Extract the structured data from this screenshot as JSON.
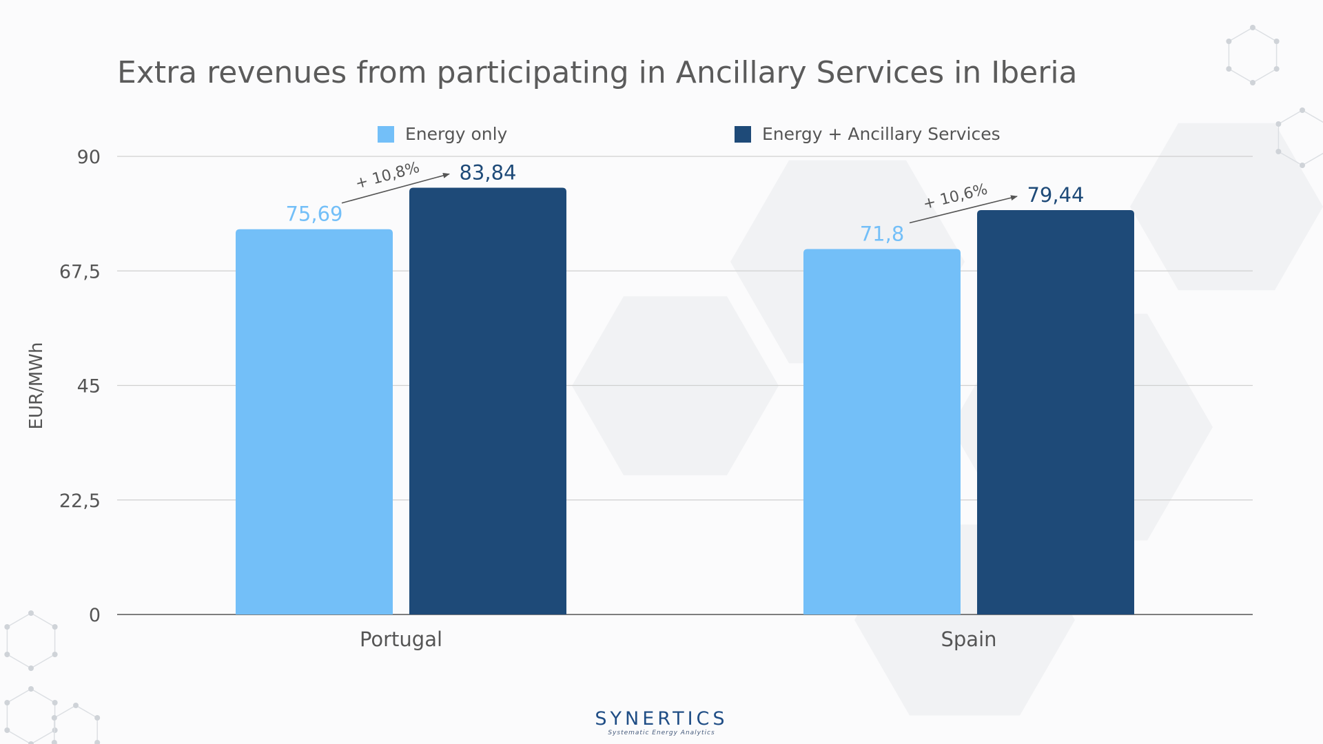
{
  "chart_data": {
    "type": "bar",
    "title": "Extra revenues from participating in Ancillary Services in Iberia",
    "ylabel": "EUR/MWh",
    "xlabel": "",
    "ylim": [
      0,
      90
    ],
    "yticks": [
      0,
      22.5,
      45,
      67.5,
      90
    ],
    "ytick_labels": [
      "0",
      "22,5",
      "45",
      "67,5",
      "90"
    ],
    "categories": [
      "Portugal",
      "Spain"
    ],
    "series": [
      {
        "name": "Energy only",
        "color": "#73bff8",
        "values": [
          75.69,
          71.8
        ],
        "labels": [
          "75,69",
          "71,8"
        ]
      },
      {
        "name": "Energy + Ancillary Services",
        "color": "#1e4a78",
        "values": [
          83.84,
          79.44
        ],
        "labels": [
          "83,84",
          "79,44"
        ]
      }
    ],
    "annotations": [
      "+ 10,8%",
      "+ 10,6%"
    ],
    "grid": true,
    "legend_position": "top-center"
  },
  "logo": {
    "name": "SYNERTICS",
    "tagline": "Systematic Energy Analytics"
  }
}
